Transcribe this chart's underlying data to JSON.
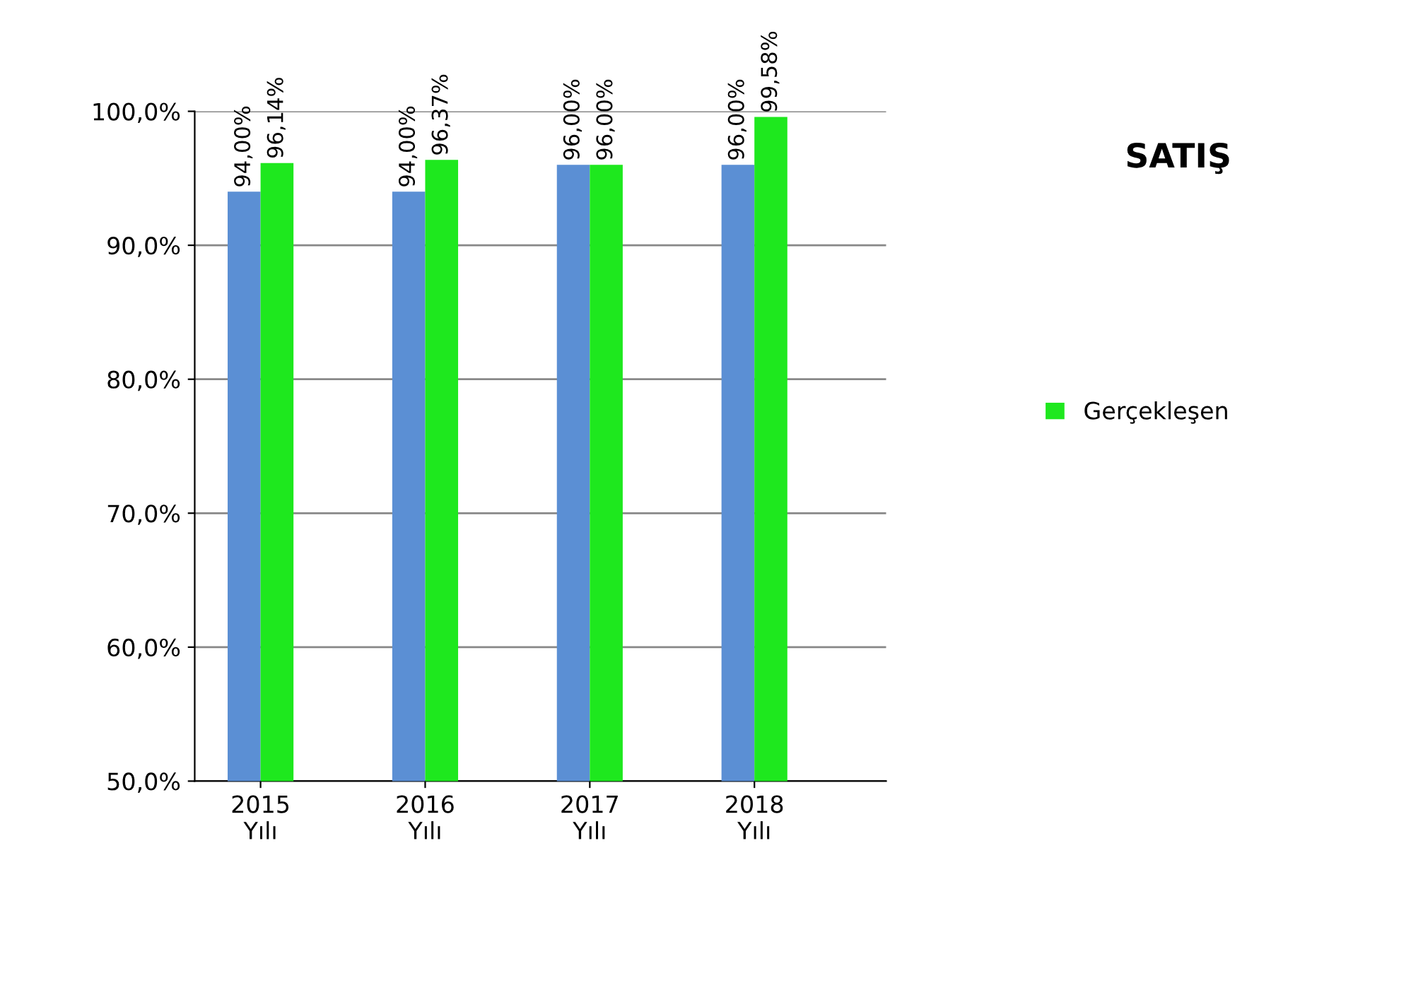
{
  "chart_data": {
    "type": "bar",
    "title": "SATIŞ",
    "categories": [
      "2015\nYılı",
      "2016\nYılı",
      "2017\nYılı",
      "2018\nYılı"
    ],
    "series": [
      {
        "color": "#5b8fd4",
        "values": [
          94.0,
          94.0,
          96.0,
          96.0
        ],
        "value_labels": [
          "94,00%",
          "94,00%",
          "96,00%",
          "96,00%"
        ]
      },
      {
        "name": "Gerçekleşen",
        "color": "#1ee81e",
        "values": [
          96.14,
          96.37,
          96.0,
          99.58
        ],
        "value_labels": [
          "96,14%",
          "96,37%",
          "96,00%",
          "99,58%"
        ]
      }
    ],
    "ylim": [
      50,
      100
    ],
    "yticks": [
      {
        "value": 50,
        "label": "50,0%"
      },
      {
        "value": 60,
        "label": "60,0%"
      },
      {
        "value": 70,
        "label": "70,0%"
      },
      {
        "value": 80,
        "label": "80,0%"
      },
      {
        "value": 90,
        "label": "90,0%"
      },
      {
        "value": 100,
        "label": "100,0%"
      }
    ],
    "grid": "y",
    "legend": "right"
  }
}
